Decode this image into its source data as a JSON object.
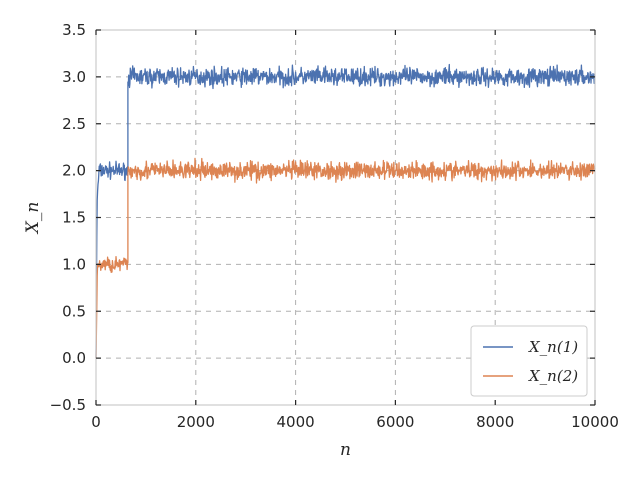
{
  "chart_data": {
    "type": "line",
    "title": "",
    "xlabel": "n",
    "ylabel": "X_n",
    "xlim": [
      0,
      10000
    ],
    "ylim": [
      -0.5,
      3.5
    ],
    "xticks": [
      0,
      2000,
      4000,
      6000,
      8000,
      10000
    ],
    "xtick_labels": [
      "0",
      "2000",
      "4000",
      "6000",
      "8000",
      "10000"
    ],
    "yticks": [
      -0.5,
      0.0,
      0.5,
      1.0,
      1.5,
      2.0,
      2.5,
      3.0,
      3.5
    ],
    "ytick_labels": [
      "−0.5",
      "0.0",
      "0.5",
      "1.0",
      "1.5",
      "2.0",
      "2.5",
      "3.0",
      "3.5"
    ],
    "grid": true,
    "legend_position": "lower-right",
    "series": [
      {
        "name": "X_n(1)",
        "color": "#4c72b0",
        "segments": [
          {
            "x": [
              0,
              20,
              60,
              640
            ],
            "y": [
              0.0,
              1.65,
              2.0,
              2.0
            ],
            "noise": 0.05
          },
          {
            "x": [
              640,
              10000
            ],
            "y": [
              3.0,
              3.0
            ],
            "noise": 0.06
          }
        ]
      },
      {
        "name": "X_n(2)",
        "color": "#dd8452",
        "segments": [
          {
            "x": [
              0,
              30,
              640
            ],
            "y": [
              0.0,
              1.0,
              1.0
            ],
            "noise": 0.05
          },
          {
            "x": [
              640,
              10000
            ],
            "y": [
              2.0,
              2.0
            ],
            "noise": 0.06
          }
        ]
      }
    ]
  }
}
